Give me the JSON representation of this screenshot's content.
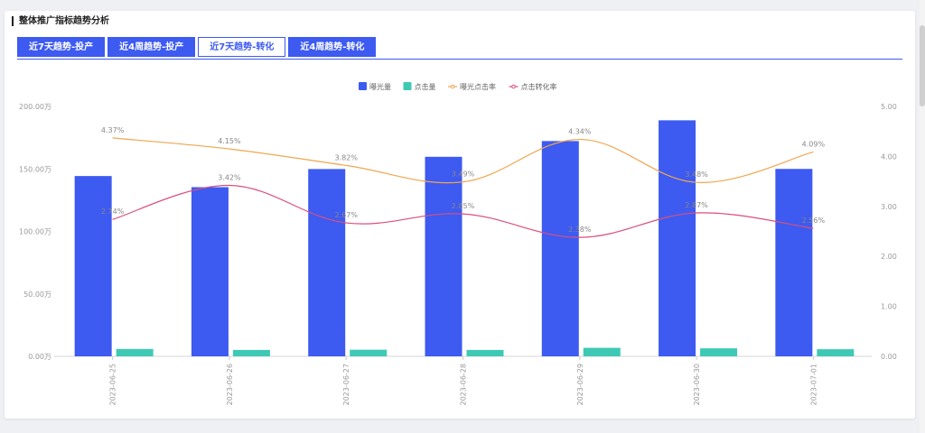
{
  "header": {
    "title": "整体推广指标趋势分析"
  },
  "tabs": [
    {
      "label": "近7天趋势-投产",
      "active": false
    },
    {
      "label": "近4周趋势-投产",
      "active": false
    },
    {
      "label": "近7天趋势-转化",
      "active": true
    },
    {
      "label": "近4周趋势-转化",
      "active": false
    }
  ],
  "colors": {
    "accent": "#3d5af1",
    "clicks": "#3fc9b5",
    "ctr": "#f0a650",
    "cvr": "#d9507a"
  },
  "chart_data": {
    "type": "bar",
    "categories": [
      "2023-06-25",
      "2023-06-26",
      "2023-06-27",
      "2023-06-28",
      "2023-06-29",
      "2023-06-30",
      "2023-07-01"
    ],
    "series": [
      {
        "name": "曝光量",
        "type": "bar",
        "axis": "left",
        "values": [
          1443000,
          1354000,
          1499000,
          1597000,
          1723000,
          1889000,
          1500000
        ]
      },
      {
        "name": "点击量",
        "type": "bar",
        "axis": "left",
        "values": [
          59000,
          51000,
          53000,
          51000,
          68000,
          64000,
          57000
        ]
      },
      {
        "name": "曝光点击率",
        "type": "line",
        "axis": "right",
        "values": [
          4.37,
          4.15,
          3.82,
          3.49,
          4.34,
          3.48,
          4.09
        ],
        "labels": [
          "4.37%",
          "4.15%",
          "3.82%",
          "3.49%",
          "4.34%",
          "3.48%",
          "4.09%"
        ]
      },
      {
        "name": "点击转化率",
        "type": "line",
        "axis": "right",
        "values": [
          2.74,
          3.42,
          2.67,
          2.85,
          2.38,
          2.87,
          2.56
        ],
        "labels": [
          "2.74%",
          "3.42%",
          "2.67%",
          "2.85%",
          "2.38%",
          "2.87%",
          "2.56%"
        ]
      }
    ],
    "y_left": {
      "ticks": [
        "0.00万",
        "50.00万",
        "100.00万",
        "150.00万",
        "200.00万"
      ],
      "range": [
        0,
        2000000
      ]
    },
    "y_right": {
      "ticks": [
        "0.00",
        "1.00",
        "2.00",
        "3.00",
        "4.00",
        "5.00"
      ],
      "range": [
        0,
        5
      ]
    },
    "legend_position": "top-center"
  }
}
